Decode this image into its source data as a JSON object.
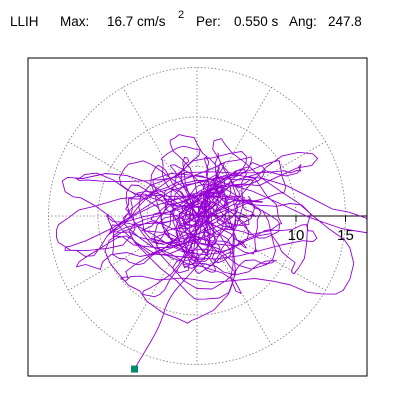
{
  "header": {
    "station": "LLIH",
    "max_label": "Max:",
    "max_value": "16.7 cm/s",
    "max_exp": "2",
    "per_label": "Per:",
    "per_value": "0.550 s",
    "ang_label": "Ang:",
    "ang_value": "247.8"
  },
  "chart_data": {
    "type": "polar",
    "title": "LLIH  Max: 16.7 cm/s2  Per: 0.550 s  Ang: 247.8",
    "max_value": 16.7,
    "period_s": 0.55,
    "angle_deg": 247.8,
    "unit": "cm/s2",
    "rings": [
      5,
      10,
      15
    ],
    "tick_labels": [
      "10",
      "15"
    ],
    "radial_spokes_deg": [
      0,
      30,
      60,
      90,
      120,
      150,
      180,
      210,
      240,
      270,
      300,
      330
    ],
    "grid": true,
    "orbit_color": "#9400d3",
    "orbit_samples": 1500,
    "orbit_seed": 12345,
    "end_marker": {
      "r": 16.7,
      "angle_deg": 247.8,
      "color": "#008b6b"
    }
  }
}
